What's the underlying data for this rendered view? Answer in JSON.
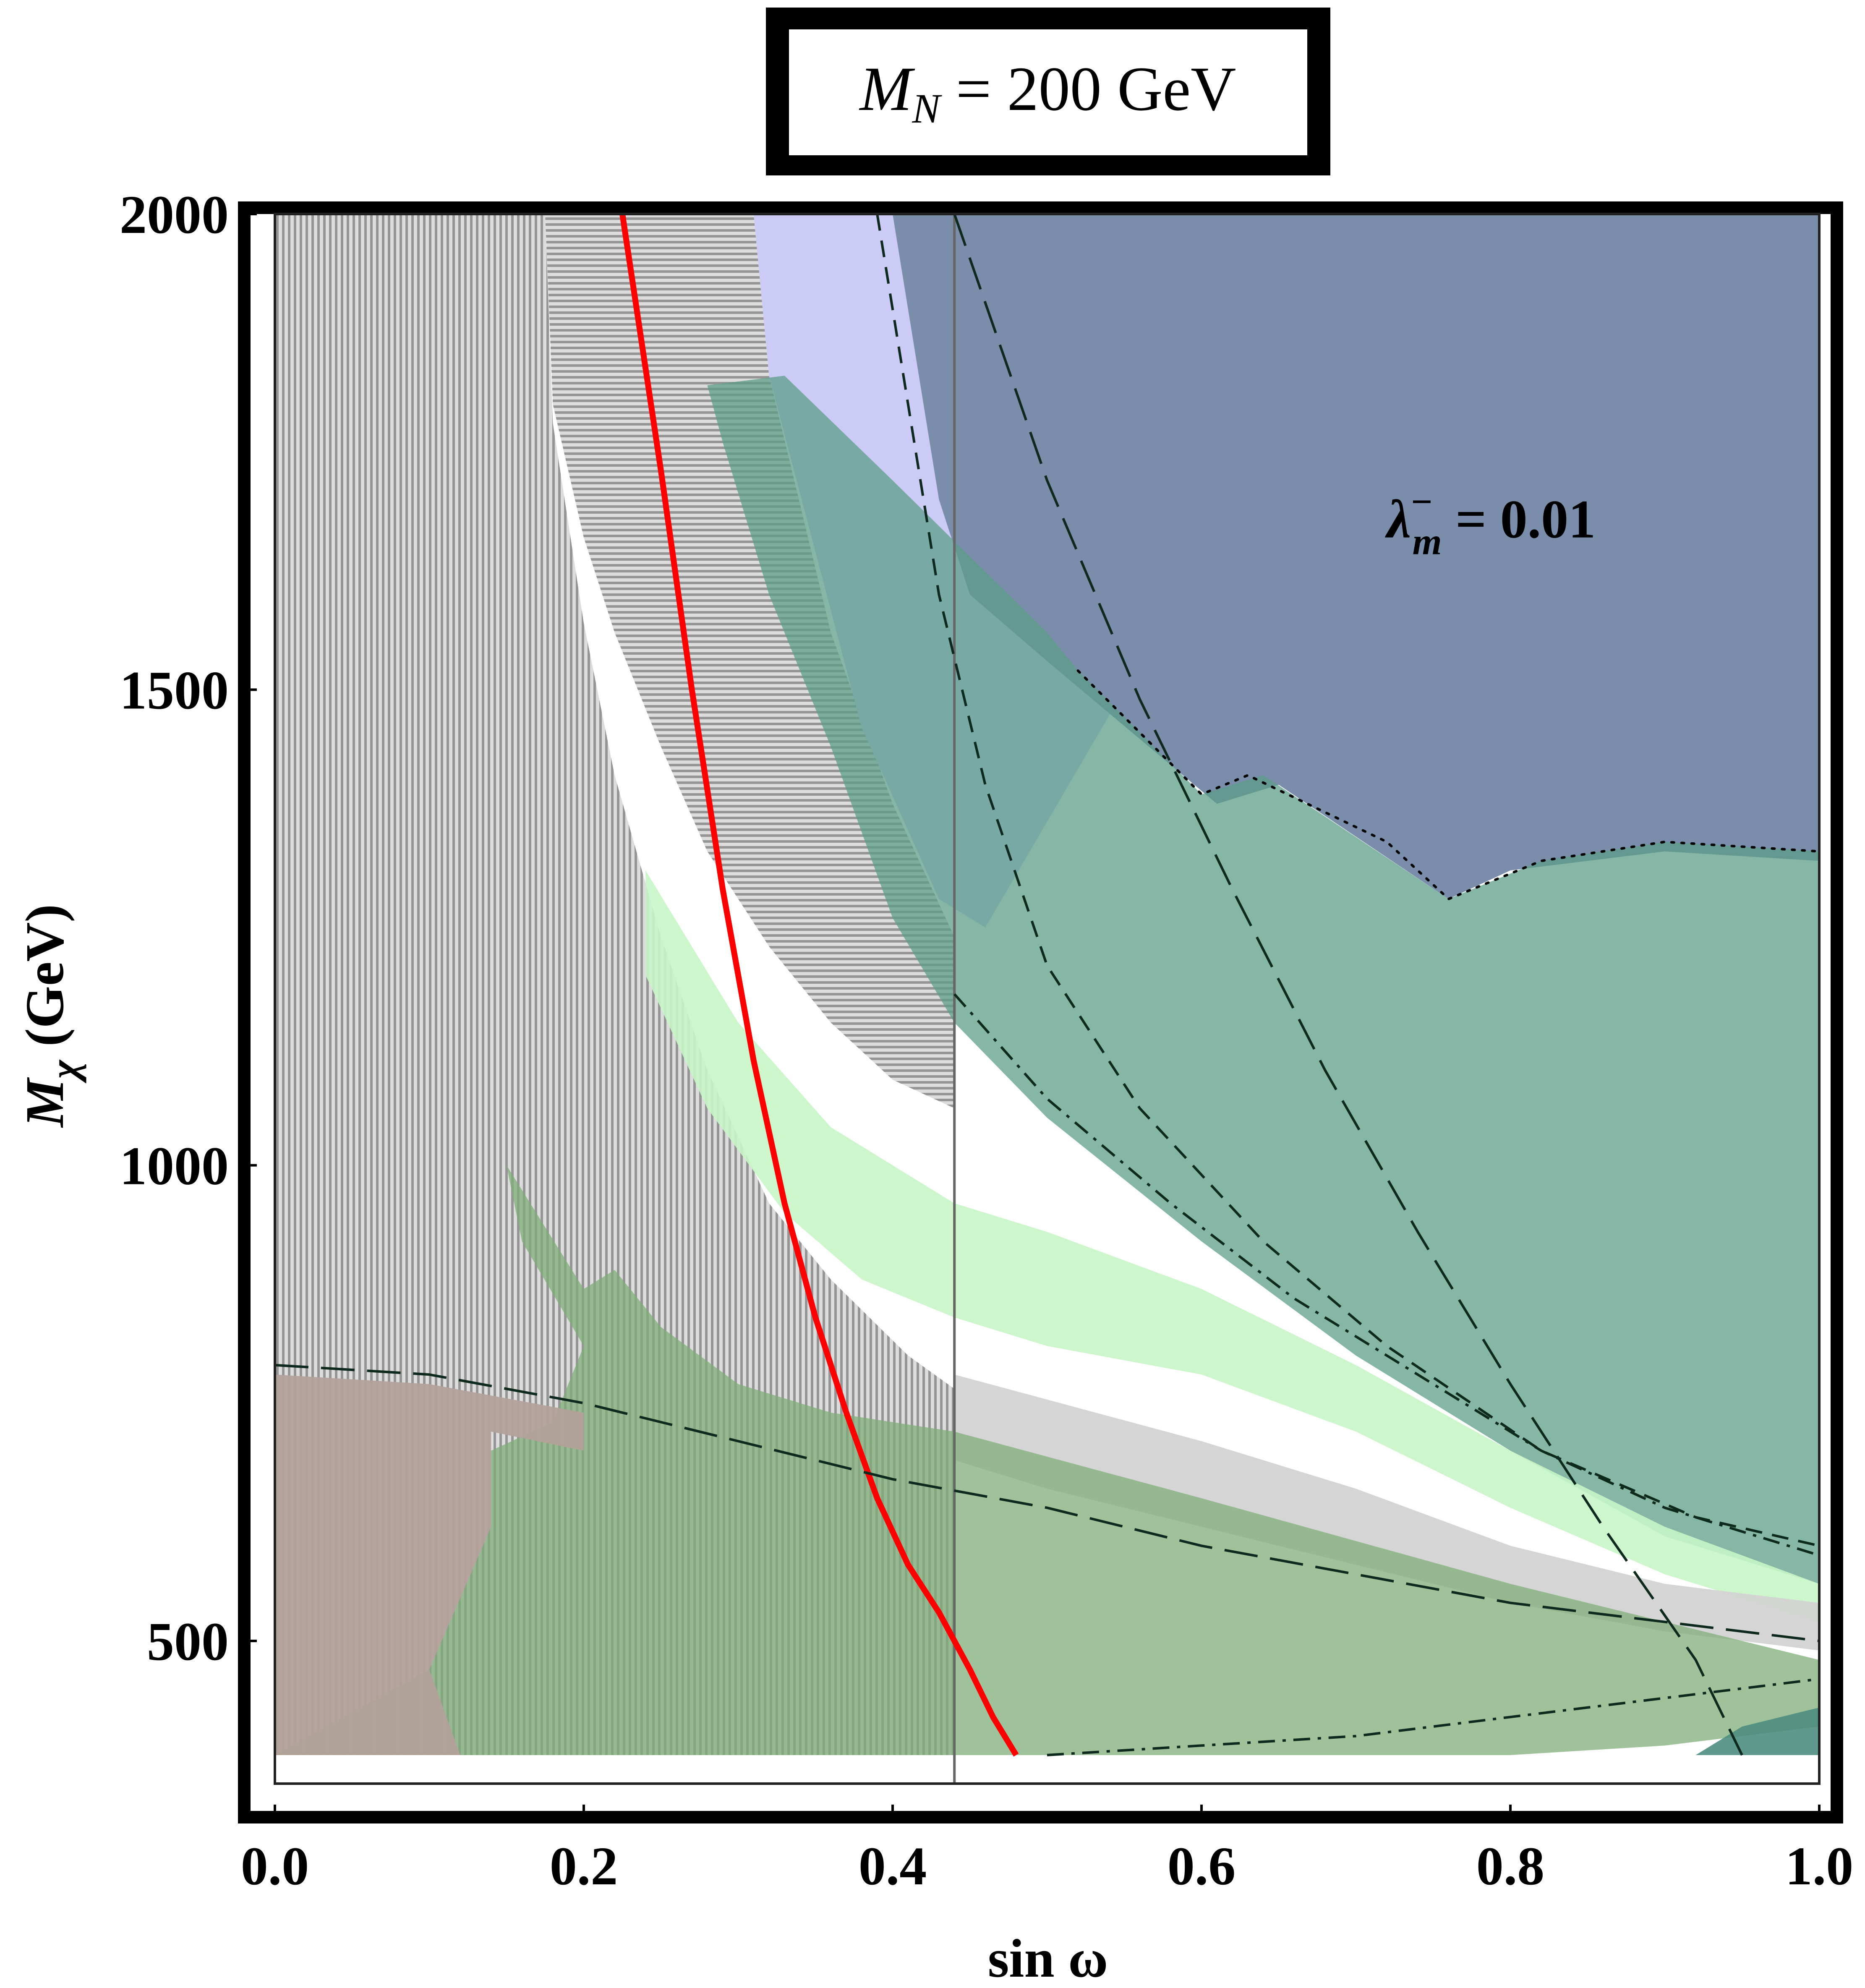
{
  "chart_data": {
    "type": "area",
    "title": "M_N = 200 GeV",
    "title_parts": {
      "symbol": "M",
      "subscript": "N",
      "rest": " = 200 GeV"
    },
    "xlabel": "sin ω",
    "ylabel_parts": {
      "symbol": "M",
      "subscript": "χ",
      "rest": " (GeV)"
    },
    "xlim": [
      0.0,
      1.0
    ],
    "ylim": [
      350,
      2000
    ],
    "x_ticks": [
      0.0,
      0.2,
      0.4,
      0.6,
      0.8,
      1.0
    ],
    "x_tick_labels": [
      "0.0",
      "0.2",
      "0.4",
      "0.6",
      "0.8",
      "1.0"
    ],
    "y_ticks": [
      500,
      1000,
      1500,
      2000
    ],
    "y_tick_labels": [
      "500",
      "1000",
      "1500",
      "2000"
    ],
    "annotation": {
      "symbol": "λ",
      "superscript": "−",
      "subscript": "m",
      "rest": " = 0.01",
      "x": 0.72,
      "y": 1660
    },
    "grid": false,
    "regions": [
      {
        "name": "vertical-hatched-exclusion",
        "fill": "#a6a6a6",
        "pattern": "vertical-hatch",
        "opacity": 0.9,
        "points": [
          [
            0.0,
            2000
          ],
          [
            0.175,
            2000
          ],
          [
            0.18,
            1780
          ],
          [
            0.2,
            1570
          ],
          [
            0.22,
            1410
          ],
          [
            0.25,
            1240
          ],
          [
            0.28,
            1100
          ],
          [
            0.32,
            960
          ],
          [
            0.36,
            880
          ],
          [
            0.41,
            800
          ],
          [
            0.44,
            765
          ],
          [
            0.44,
            380
          ],
          [
            0.0,
            380
          ]
        ]
      },
      {
        "name": "horizontal-hatched-exclusion",
        "fill": "#9a9a9a",
        "pattern": "horizontal-hatch",
        "opacity": 0.9,
        "points": [
          [
            0.175,
            2000
          ],
          [
            0.31,
            2000
          ],
          [
            0.32,
            1830
          ],
          [
            0.36,
            1560
          ],
          [
            0.4,
            1380
          ],
          [
            0.44,
            1240
          ],
          [
            0.44,
            1060
          ],
          [
            0.4,
            1090
          ],
          [
            0.36,
            1150
          ],
          [
            0.32,
            1230
          ],
          [
            0.28,
            1330
          ],
          [
            0.25,
            1440
          ],
          [
            0.22,
            1560
          ],
          [
            0.2,
            1660
          ],
          [
            0.18,
            1800
          ]
        ]
      },
      {
        "name": "lavender-region",
        "fill": "#c8c8f5",
        "opacity": 0.95,
        "points": [
          [
            0.31,
            2000
          ],
          [
            0.42,
            2000
          ],
          [
            0.5,
            1790
          ],
          [
            0.6,
            1520
          ],
          [
            0.55,
            1500
          ],
          [
            0.46,
            1250
          ],
          [
            0.43,
            1280
          ],
          [
            0.38,
            1460
          ],
          [
            0.32,
            1830
          ]
        ]
      },
      {
        "name": "steel-blue-region",
        "fill": "#7a8dab",
        "opacity": 1.0,
        "points": [
          [
            0.4,
            2000
          ],
          [
            1.0,
            2000
          ],
          [
            1.0,
            1320
          ],
          [
            0.9,
            1330
          ],
          [
            0.8,
            1310
          ],
          [
            0.76,
            1280
          ],
          [
            0.65,
            1400
          ],
          [
            0.61,
            1380
          ],
          [
            0.5,
            1530
          ],
          [
            0.45,
            1600
          ],
          [
            0.43,
            1700
          ]
        ]
      },
      {
        "name": "green-dotted-main",
        "fill": "#5e9e88",
        "opacity": 0.75,
        "points": [
          [
            0.28,
            1820
          ],
          [
            0.33,
            1830
          ],
          [
            0.4,
            1720
          ],
          [
            0.5,
            1560
          ],
          [
            0.52,
            1520
          ],
          [
            0.6,
            1390
          ],
          [
            0.64,
            1410
          ],
          [
            0.76,
            1280
          ],
          [
            0.82,
            1320
          ],
          [
            0.9,
            1340
          ],
          [
            1.0,
            1330
          ],
          [
            1.0,
            560
          ],
          [
            0.9,
            610
          ],
          [
            0.8,
            700
          ],
          [
            0.7,
            800
          ],
          [
            0.6,
            920
          ],
          [
            0.5,
            1050
          ],
          [
            0.44,
            1150
          ],
          [
            0.4,
            1260
          ],
          [
            0.36,
            1440
          ],
          [
            0.32,
            1600
          ],
          [
            0.29,
            1760
          ]
        ]
      },
      {
        "name": "light-green-band",
        "fill": "#c8f5c8",
        "opacity": 0.9,
        "points": [
          [
            0.24,
            1310
          ],
          [
            0.3,
            1150
          ],
          [
            0.36,
            1040
          ],
          [
            0.44,
            960
          ],
          [
            0.5,
            930
          ],
          [
            0.6,
            870
          ],
          [
            0.7,
            790
          ],
          [
            0.8,
            700
          ],
          [
            0.9,
            620
          ],
          [
            1.0,
            560
          ],
          [
            1.0,
            520
          ],
          [
            0.9,
            570
          ],
          [
            0.8,
            640
          ],
          [
            0.7,
            720
          ],
          [
            0.6,
            780
          ],
          [
            0.5,
            810
          ],
          [
            0.44,
            840
          ],
          [
            0.38,
            880
          ],
          [
            0.33,
            950
          ],
          [
            0.28,
            1060
          ],
          [
            0.24,
            1200
          ]
        ]
      },
      {
        "name": "gray-band",
        "fill": "#d3d3d3",
        "opacity": 0.95,
        "points": [
          [
            0.44,
            780
          ],
          [
            0.6,
            710
          ],
          [
            0.7,
            660
          ],
          [
            0.8,
            600
          ],
          [
            0.9,
            560
          ],
          [
            1.0,
            540
          ],
          [
            1.0,
            490
          ],
          [
            0.9,
            510
          ],
          [
            0.8,
            540
          ],
          [
            0.7,
            580
          ],
          [
            0.6,
            620
          ],
          [
            0.5,
            660
          ],
          [
            0.44,
            690
          ]
        ]
      },
      {
        "name": "green-low-mass",
        "fill": "#7fae7a",
        "opacity": 0.75,
        "points": [
          [
            0.15,
            1000
          ],
          [
            0.2,
            870
          ],
          [
            0.22,
            890
          ],
          [
            0.25,
            830
          ],
          [
            0.3,
            770
          ],
          [
            0.36,
            740
          ],
          [
            0.44,
            720
          ],
          [
            0.6,
            650
          ],
          [
            0.8,
            560
          ],
          [
            1.0,
            480
          ],
          [
            1.0,
            410
          ],
          [
            0.9,
            390
          ],
          [
            0.8,
            380
          ],
          [
            0.0,
            380
          ],
          [
            0.1,
            470
          ],
          [
            0.14,
            620
          ],
          [
            0.14,
            700
          ],
          [
            0.18,
            730
          ],
          [
            0.2,
            810
          ],
          [
            0.16,
            920
          ]
        ]
      },
      {
        "name": "brown-corner",
        "fill": "#b3a19a",
        "opacity": 0.95,
        "points": [
          [
            0.0,
            780
          ],
          [
            0.1,
            770
          ],
          [
            0.2,
            740
          ],
          [
            0.2,
            700
          ],
          [
            0.14,
            720
          ],
          [
            0.14,
            620
          ],
          [
            0.1,
            470
          ],
          [
            0.12,
            380
          ],
          [
            0.0,
            380
          ]
        ]
      },
      {
        "name": "dark-teal-corner",
        "fill": "#4e8d80",
        "opacity": 0.9,
        "points": [
          [
            0.92,
            380
          ],
          [
            1.0,
            380
          ],
          [
            1.0,
            430
          ],
          [
            0.95,
            410
          ]
        ]
      }
    ],
    "curves": [
      {
        "name": "red-solid-curve",
        "color": "#ff0000",
        "style": "solid",
        "width": 14,
        "points": [
          [
            0.225,
            2000
          ],
          [
            0.25,
            1730
          ],
          [
            0.27,
            1500
          ],
          [
            0.29,
            1290
          ],
          [
            0.31,
            1110
          ],
          [
            0.33,
            960
          ],
          [
            0.35,
            840
          ],
          [
            0.37,
            740
          ],
          [
            0.39,
            650
          ],
          [
            0.41,
            580
          ],
          [
            0.43,
            530
          ],
          [
            0.45,
            470
          ],
          [
            0.465,
            420
          ],
          [
            0.48,
            380
          ]
        ]
      },
      {
        "name": "long-dash-wide-curve",
        "color": "#0e2a1f",
        "style": "long-dash",
        "width": 6,
        "points": [
          [
            0.44,
            2000
          ],
          [
            0.5,
            1720
          ],
          [
            0.56,
            1490
          ],
          [
            0.62,
            1290
          ],
          [
            0.68,
            1100
          ],
          [
            0.74,
            930
          ],
          [
            0.8,
            770
          ],
          [
            0.86,
            620
          ],
          [
            0.92,
            480
          ],
          [
            0.95,
            380
          ]
        ]
      },
      {
        "name": "dash-inner-curve",
        "color": "#0e2a1f",
        "style": "dash",
        "width": 6,
        "points": [
          [
            0.39,
            2000
          ],
          [
            0.41,
            1800
          ],
          [
            0.43,
            1600
          ],
          [
            0.46,
            1400
          ],
          [
            0.5,
            1210
          ],
          [
            0.56,
            1060
          ],
          [
            0.64,
            920
          ],
          [
            0.72,
            810
          ],
          [
            0.82,
            700
          ],
          [
            0.92,
            630
          ],
          [
            1.0,
            600
          ]
        ]
      },
      {
        "name": "dash-dot-curve",
        "color": "#0e2a1f",
        "style": "dash-dot",
        "width": 6,
        "points": [
          [
            0.44,
            1180
          ],
          [
            0.5,
            1070
          ],
          [
            0.58,
            960
          ],
          [
            0.66,
            860
          ],
          [
            0.74,
            780
          ],
          [
            0.82,
            700
          ],
          [
            0.9,
            640
          ],
          [
            1.0,
            590
          ]
        ]
      },
      {
        "name": "dash-low-curve",
        "color": "#0e2a1f",
        "style": "long-dash",
        "width": 6,
        "points": [
          [
            0.0,
            790
          ],
          [
            0.1,
            780
          ],
          [
            0.2,
            750
          ],
          [
            0.3,
            710
          ],
          [
            0.4,
            670
          ],
          [
            0.5,
            640
          ],
          [
            0.6,
            600
          ],
          [
            0.7,
            570
          ],
          [
            0.8,
            540
          ],
          [
            0.9,
            520
          ],
          [
            1.0,
            500
          ]
        ]
      },
      {
        "name": "dash-dot-bottom-curve",
        "color": "#0e2a1f",
        "style": "dash-dot",
        "width": 6,
        "points": [
          [
            0.5,
            380
          ],
          [
            0.6,
            390
          ],
          [
            0.7,
            400
          ],
          [
            0.8,
            420
          ],
          [
            0.9,
            440
          ],
          [
            1.0,
            460
          ]
        ]
      },
      {
        "name": "dotted-region-edge",
        "color": "#000000",
        "style": "dotted",
        "width": 6,
        "points": [
          [
            0.52,
            1520
          ],
          [
            0.6,
            1390
          ],
          [
            0.63,
            1410
          ],
          [
            0.72,
            1340
          ],
          [
            0.76,
            1280
          ],
          [
            0.82,
            1320
          ],
          [
            0.9,
            1340
          ],
          [
            1.0,
            1330
          ]
        ]
      },
      {
        "name": "dash-vertical-left",
        "color": "#000000",
        "style": "dash",
        "width": 6,
        "points": [
          [
            0.0,
            780
          ],
          [
            0.0,
            380
          ]
        ]
      }
    ],
    "vertical_lines": [
      {
        "name": "gray-vertical-line",
        "x": 0.44,
        "color": "#666666"
      }
    ]
  }
}
